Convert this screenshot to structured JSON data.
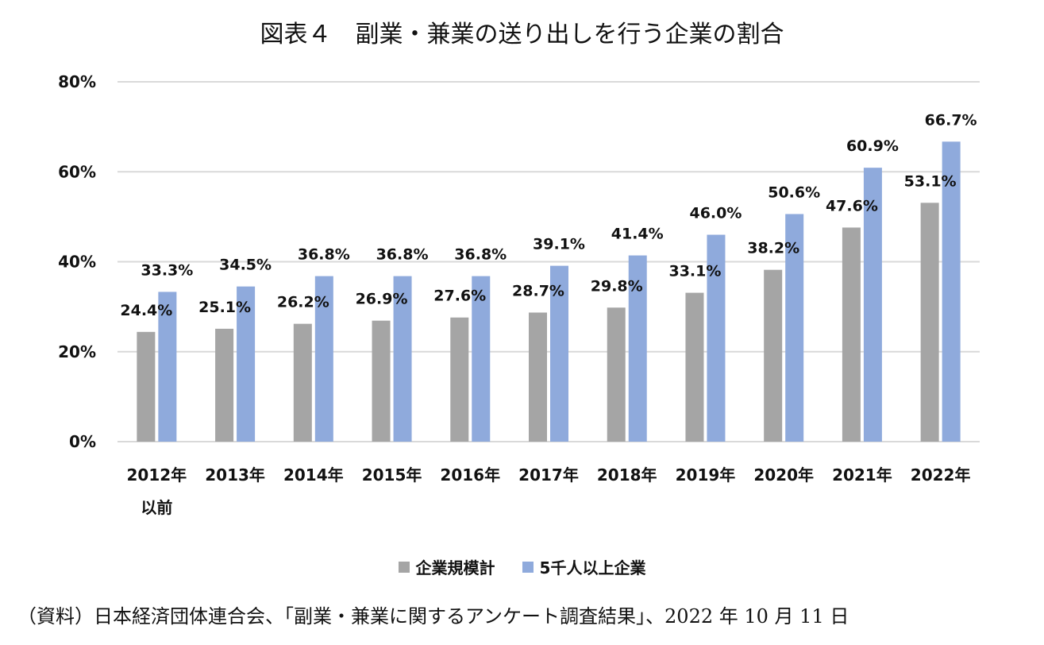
{
  "title": "図表４　副業・兼業の送り出しを行う企業の割合",
  "source": "（資料）日本経済団体連合会、「副業・兼業に関するアンケート調査結果」、2022 年 10 月 11 日",
  "chart_data": {
    "type": "bar",
    "categories": [
      [
        "2012年",
        "以前"
      ],
      [
        "2013年"
      ],
      [
        "2014年"
      ],
      [
        "2015年"
      ],
      [
        "2016年"
      ],
      [
        "2017年"
      ],
      [
        "2018年"
      ],
      [
        "2019年"
      ],
      [
        "2020年"
      ],
      [
        "2021年"
      ],
      [
        "2022年"
      ]
    ],
    "series": [
      {
        "name": "企業規模計",
        "color": "#a5a5a5",
        "values": [
          24.4,
          25.1,
          26.2,
          26.9,
          27.6,
          28.7,
          29.8,
          33.1,
          38.2,
          47.6,
          53.1
        ],
        "labels": [
          "24.4%",
          "25.1%",
          "26.2%",
          "26.9%",
          "27.6%",
          "28.7%",
          "29.8%",
          "33.1%",
          "38.2%",
          "47.6%",
          "53.1%"
        ]
      },
      {
        "name": "5千人以上企業",
        "color": "#8faadc",
        "values": [
          33.3,
          34.5,
          36.8,
          36.8,
          36.8,
          39.1,
          41.4,
          46.0,
          50.6,
          60.9,
          66.7
        ],
        "labels": [
          "33.3%",
          "34.5%",
          "36.8%",
          "36.8%",
          "36.8%",
          "39.1%",
          "41.4%",
          "46.0%",
          "50.6%",
          "60.9%",
          "66.7%"
        ]
      }
    ],
    "ylim": [
      0,
      80
    ],
    "yticks": [
      0,
      20,
      40,
      60,
      80
    ],
    "ytick_labels": [
      "0%",
      "20%",
      "40%",
      "60%",
      "80%"
    ],
    "grid": true,
    "legend_position": "bottom"
  }
}
